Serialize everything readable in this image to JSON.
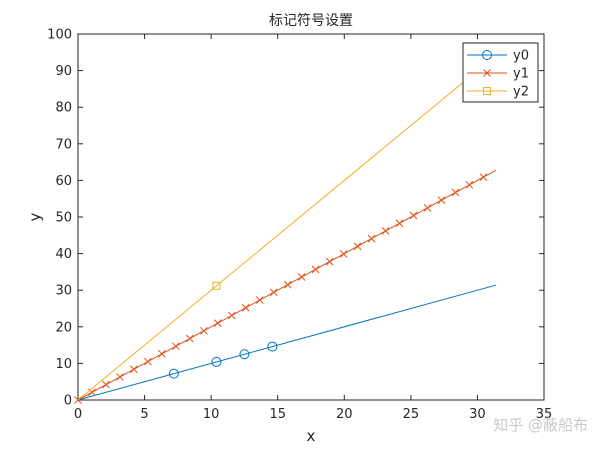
{
  "chart_data": {
    "type": "line",
    "title": "标记符号设置",
    "xlabel": "x",
    "ylabel": "y",
    "xlim": [
      0,
      35
    ],
    "ylim": [
      0,
      100
    ],
    "xticks": [
      0,
      5,
      10,
      15,
      20,
      25,
      30,
      35
    ],
    "yticks": [
      0,
      10,
      20,
      30,
      40,
      50,
      60,
      70,
      80,
      90,
      100
    ],
    "grid": false,
    "legend_position": "top-right",
    "series": [
      {
        "name": "y0",
        "color": "#0072BD",
        "marker": "circle",
        "line": {
          "x": [
            0,
            31.4
          ],
          "y": [
            0,
            31.4
          ]
        },
        "markers": {
          "x": [
            7.2,
            10.4,
            12.5,
            14.6
          ],
          "y": [
            7.2,
            10.4,
            12.5,
            14.6
          ]
        }
      },
      {
        "name": "y1",
        "color": "#D95319",
        "marker": "x",
        "line": {
          "x": [
            0,
            31.4
          ],
          "y": [
            0,
            62.8
          ]
        },
        "markers": {
          "x": [
            0,
            1.05,
            2.1,
            3.15,
            4.2,
            5.25,
            6.3,
            7.35,
            8.4,
            9.45,
            10.5,
            11.55,
            12.6,
            13.65,
            14.7,
            15.75,
            16.8,
            17.85,
            18.9,
            19.95,
            21.0,
            22.05,
            23.1,
            24.15,
            25.2,
            26.25,
            27.3,
            28.35,
            29.4,
            30.45
          ],
          "y": [
            0,
            2.1,
            4.2,
            6.3,
            8.4,
            10.5,
            12.6,
            14.7,
            16.8,
            18.9,
            21.0,
            23.1,
            25.2,
            27.3,
            29.4,
            31.5,
            33.6,
            35.7,
            37.8,
            39.9,
            42.0,
            44.1,
            46.2,
            48.3,
            50.4,
            52.5,
            54.6,
            56.7,
            58.8,
            60.9
          ]
        }
      },
      {
        "name": "y2",
        "color": "#EDB120",
        "marker": "square",
        "line": {
          "x": [
            0,
            31.4
          ],
          "y": [
            0,
            94.2
          ]
        },
        "markers": {
          "x": [
            10.4
          ],
          "y": [
            31.2
          ]
        }
      }
    ]
  },
  "watermark": {
    "text": "知乎 @蔽船布"
  }
}
